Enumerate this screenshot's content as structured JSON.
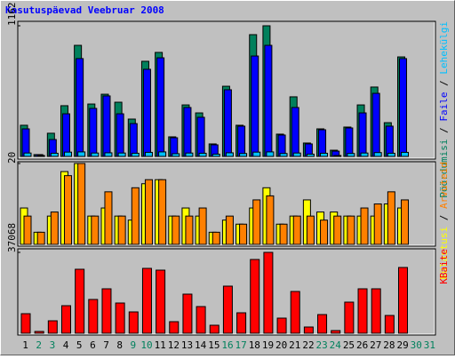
{
  "chart_data": {
    "type": "bar",
    "title": "Kasutuspäevad Veebruar 2008",
    "categories": [
      "1",
      "2",
      "3",
      "4",
      "5",
      "6",
      "7",
      "8",
      "9",
      "10",
      "11",
      "12",
      "13",
      "14",
      "15",
      "16",
      "17",
      "18",
      "19",
      "20",
      "21",
      "22",
      "23",
      "24",
      "25",
      "26",
      "27",
      "28",
      "29",
      "30",
      "31"
    ],
    "category_colors": [
      "#000000",
      "#00805c",
      "#00805c",
      "#000000",
      "#000000",
      "#000000",
      "#000000",
      "#000000",
      "#00805c",
      "#00805c",
      "#000000",
      "#000000",
      "#000000",
      "#000000",
      "#000000",
      "#00805c",
      "#00805c",
      "#000000",
      "#000000",
      "#000000",
      "#000000",
      "#000000",
      "#00805c",
      "#00805c",
      "#000000",
      "#000000",
      "#000000",
      "#000000",
      "#000000",
      "#00805c",
      "#00805c"
    ],
    "legend_separator": " / ",
    "panels": [
      {
        "ylim": [
          0,
          1162
        ],
        "yticks": [
          1162
        ],
        "series": [
          {
            "name": "Pöördumisi",
            "color": "#00805c",
            "values": [
              277,
              16,
              206,
              451,
              988,
              466,
              553,
              482,
              332,
              846,
              925,
              174,
              458,
              387,
              111,
              624,
              277,
              1083,
              1162,
              198,
              530,
              119,
              245,
              55,
              261,
              458,
              617,
              300,
              885,
              null,
              null
            ]
          },
          {
            "name": "Faile",
            "color": "#0000ff",
            "values": [
              245,
              16,
              150,
              379,
              870,
              427,
              538,
              379,
              292,
              775,
              877,
              166,
              435,
              348,
              103,
              593,
              269,
              893,
              988,
              190,
              435,
              111,
              237,
              47,
              253,
              387,
              561,
              269,
              870,
              null,
              null
            ]
          },
          {
            "name": "Lehekülgi",
            "color": "#00c0ff",
            "values": [
              30,
              8,
              28,
              38,
              40,
              30,
              32,
              30,
              28,
              36,
              40,
              24,
              30,
              28,
              20,
              32,
              26,
              38,
              40,
              26,
              30,
              20,
              28,
              8,
              26,
              30,
              34,
              28,
              36,
              null,
              null
            ]
          }
        ]
      },
      {
        "ylim": [
          0,
          20
        ],
        "yticks": [
          20
        ],
        "series": [
          {
            "name": "Külastusi",
            "color": "#ffff00",
            "values": [
              9,
              3,
              7,
              18,
              20,
              7,
              9,
              7,
              6,
              15,
              16,
              7,
              9,
              7,
              3,
              6,
              5,
              9,
              14,
              5,
              7,
              11,
              8,
              8,
              7,
              7,
              7,
              10,
              9,
              null,
              null
            ]
          },
          {
            "name": "Arvuteid",
            "color": "#ff8000",
            "values": [
              7,
              3,
              8,
              17,
              20,
              7,
              13,
              7,
              14,
              16,
              16,
              7,
              7,
              9,
              3,
              7,
              5,
              11,
              12,
              5,
              7,
              7,
              6,
              7,
              7,
              9,
              10,
              13,
              11,
              null,
              null
            ]
          }
        ]
      },
      {
        "ylim": [
          0,
          37068
        ],
        "yticks": [
          37068
        ],
        "series": [
          {
            "name": "KBaite",
            "color": "#ff0000",
            "values": [
              8962,
              815,
              5703,
              12628,
              29329,
              15479,
              20367,
              13850,
              9776,
              29736,
              28921,
              5295,
              17923,
              12220,
              3666,
              21589,
              9369,
              33810,
              37068,
              6925,
              19145,
              2851,
              8554,
              1222,
              14257,
              20367,
              20367,
              8147,
              30144,
              null,
              null
            ]
          }
        ]
      }
    ]
  }
}
